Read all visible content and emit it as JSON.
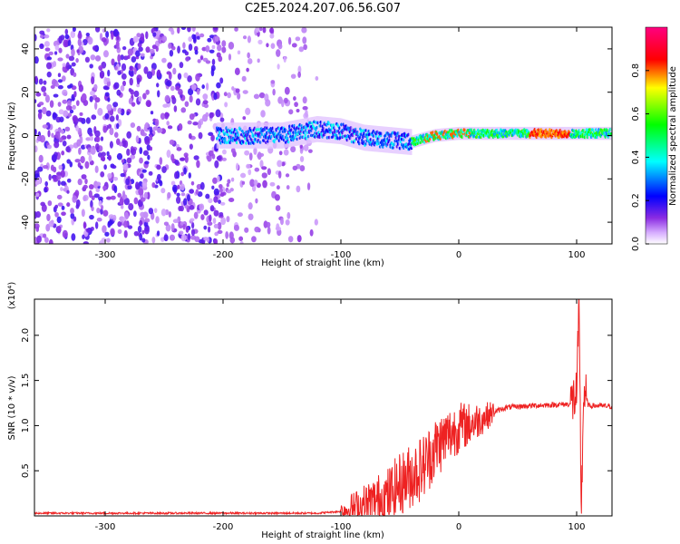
{
  "title": "C2E5.2024.207.06.56.G07",
  "colors": {
    "snr_line": "#ee2222",
    "axis": "#000000"
  },
  "chart_data": [
    {
      "type": "heatmap",
      "xlabel": "Height of straight line (km)",
      "ylabel": "Frequency (Hz)",
      "xlim": [
        -360,
        130
      ],
      "ylim": [
        -50,
        50
      ],
      "xticks": [
        -300,
        -200,
        -100,
        0,
        100
      ],
      "yticks": [
        -40,
        -20,
        0,
        20,
        40
      ],
      "colorbar": {
        "label": "Normalized spectral amplitude",
        "range": [
          0.0,
          1.0
        ],
        "ticks": [
          0.0,
          0.2,
          0.4,
          0.6,
          0.8
        ],
        "colormap": [
          "#ffffff",
          "#8a2be2",
          "#0000ff",
          "#00ffff",
          "#00ff00",
          "#ffff00",
          "#ff0000",
          "#ff0080"
        ]
      },
      "description_points": {
        "signal_track_freq_hz": [
          [
            -200,
            0
          ],
          [
            -150,
            0
          ],
          [
            -120,
            3
          ],
          [
            -100,
            2
          ],
          [
            -80,
            -1
          ],
          [
            -60,
            -2
          ],
          [
            -40,
            -3
          ],
          [
            -20,
            0
          ],
          [
            0,
            1
          ],
          [
            50,
            1
          ],
          [
            100,
            1
          ],
          [
            130,
            1
          ]
        ],
        "noise_region_x": [
          -360,
          -120
        ]
      }
    },
    {
      "type": "line",
      "xlabel": "Height of straight line (km)",
      "ylabel": "SNR (10 * v/v)",
      "scale_label": "(x10⁴)",
      "xlim": [
        -360,
        130
      ],
      "ylim": [
        0,
        2.4
      ],
      "xticks": [
        -300,
        -200,
        -100,
        0,
        100
      ],
      "yticks": [
        0.5,
        1.0,
        1.5,
        2.0
      ],
      "series": [
        {
          "x": [
            -360,
            -300,
            -250,
            -200,
            -150,
            -120,
            -100,
            -80,
            -60,
            -50,
            -40,
            -30,
            -20,
            -10,
            0,
            10,
            20,
            30,
            40,
            60,
            80,
            95,
            100,
            102,
            104,
            106,
            110,
            120,
            130
          ],
          "y": [
            0.03,
            0.03,
            0.03,
            0.03,
            0.03,
            0.03,
            0.05,
            0.12,
            0.22,
            0.35,
            0.45,
            0.55,
            0.75,
            0.88,
            0.98,
            1.02,
            1.08,
            1.15,
            1.2,
            1.22,
            1.23,
            1.24,
            1.35,
            2.2,
            0.05,
            1.4,
            1.22,
            1.22,
            1.21
          ]
        }
      ]
    }
  ],
  "labels": {
    "top_xlabel": "Height of straight line (km)",
    "top_ylabel": "Frequency (Hz)",
    "colorbar_label": "Normalized spectral amplitude",
    "bottom_xlabel": "Height of straight line (km)",
    "bottom_ylabel": "SNR (10 * v/v)",
    "scale_label": "(x10⁴)"
  }
}
